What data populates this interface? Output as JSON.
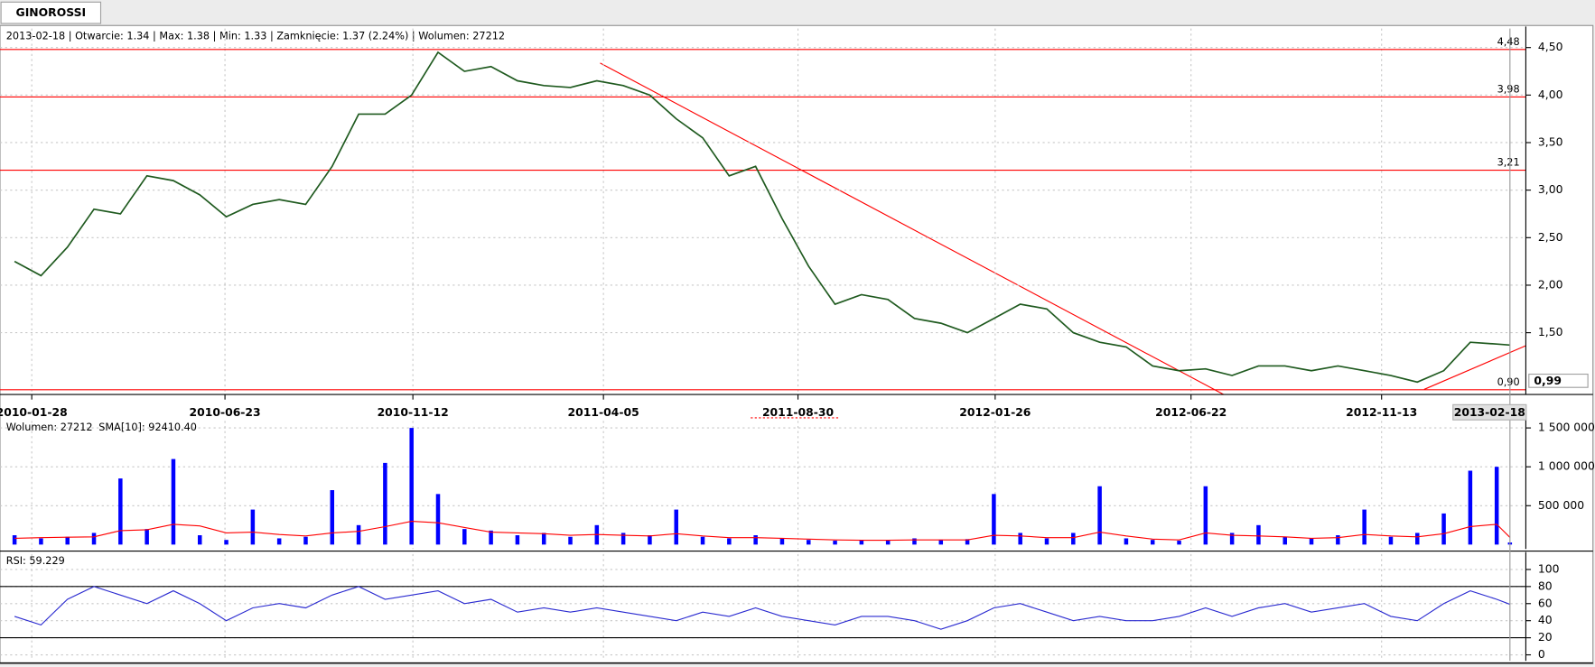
{
  "tab": "GINOROSSI",
  "chart_data": [
    {
      "type": "line",
      "info": "2013-02-18 | Otwarcie: 1.34 | Max: 1.38 | Min: 1.33 | Zamknięcie: 1.37 (2.24%) | Wolumen: 27212",
      "x": [
        "2010-01-15",
        "2010-02-04",
        "2010-02-24",
        "2010-03-16",
        "2010-04-05",
        "2010-04-25",
        "2010-05-15",
        "2010-06-04",
        "2010-06-24",
        "2010-07-14",
        "2010-08-03",
        "2010-08-23",
        "2010-09-12",
        "2010-10-02",
        "2010-10-22",
        "2010-11-11",
        "2010-12-01",
        "2010-12-21",
        "2011-01-10",
        "2011-01-30",
        "2011-02-19",
        "2011-03-11",
        "2011-03-31",
        "2011-04-20",
        "2011-05-10",
        "2011-05-30",
        "2011-06-19",
        "2011-07-09",
        "2011-07-29",
        "2011-08-18",
        "2011-09-07",
        "2011-09-27",
        "2011-10-17",
        "2011-11-06",
        "2011-11-26",
        "2011-12-16",
        "2012-01-05",
        "2012-01-25",
        "2012-02-14",
        "2012-03-05",
        "2012-03-25",
        "2012-04-14",
        "2012-05-04",
        "2012-05-24",
        "2012-06-13",
        "2012-07-03",
        "2012-07-23",
        "2012-08-12",
        "2012-09-01",
        "2012-09-21",
        "2012-10-11",
        "2012-10-31",
        "2012-11-20",
        "2012-12-10",
        "2012-12-30",
        "2013-01-19",
        "2013-02-08",
        "2013-02-18"
      ],
      "xlim": [
        "2010-01-04",
        "2013-03-02"
      ],
      "xticks": [
        "2010-01-28",
        "2010-06-23",
        "2010-11-12",
        "2011-04-05",
        "2011-08-30",
        "2012-01-26",
        "2012-06-22",
        "2012-11-13"
      ],
      "ylim": [
        0.85,
        4.7
      ],
      "yticks": [
        {
          "value": 4.5,
          "label": "4,50"
        },
        {
          "value": 4.0,
          "label": "4,00"
        },
        {
          "value": 3.5,
          "label": "3,50"
        },
        {
          "value": 3.0,
          "label": "3,00"
        },
        {
          "value": 2.5,
          "label": "2,50"
        },
        {
          "value": 2.0,
          "label": "2,00"
        },
        {
          "value": 1.5,
          "label": "1,50"
        }
      ],
      "grid": true,
      "levels": [
        {
          "value": 4.48,
          "label": "4,48"
        },
        {
          "value": 3.98,
          "label": "3,98"
        },
        {
          "value": 3.21,
          "label": "3,21"
        },
        {
          "value": 0.9,
          "label": "0,90"
        }
      ],
      "level_color": "#ff0000",
      "cursor_date": "2013-02-18",
      "cursor_price_label": "0,99",
      "series": [
        {
          "color": "#1f5a1f",
          "values": [
            2.25,
            2.1,
            2.4,
            2.8,
            2.75,
            3.15,
            3.1,
            2.95,
            2.72,
            2.85,
            2.9,
            2.85,
            3.25,
            3.8,
            3.8,
            4.0,
            4.45,
            4.25,
            4.3,
            4.15,
            4.1,
            4.08,
            4.15,
            4.1,
            4.0,
            3.75,
            3.55,
            3.15,
            3.25,
            2.7,
            2.2,
            1.8,
            1.9,
            1.85,
            1.65,
            1.6,
            1.5,
            1.65,
            1.8,
            1.75,
            1.5,
            1.4,
            1.35,
            1.15,
            1.1,
            1.12,
            1.05,
            1.15,
            1.15,
            1.1,
            1.15,
            1.1,
            1.05,
            0.98,
            1.1,
            1.4,
            1.38,
            1.37
          ]
        }
      ]
    },
    {
      "type": "bar",
      "ylim": [
        -57000,
        1590000
      ],
      "yticks": [
        {
          "value": 1500000,
          "label": "1 500 000"
        },
        {
          "value": 1000000,
          "label": "1 000 000"
        },
        {
          "value": 500000,
          "label": "500 000"
        }
      ],
      "series": [
        {
          "name": "Wolumen: 27212",
          "color": "#0000ff",
          "values": [
            120000,
            80000,
            100000,
            150000,
            850000,
            200000,
            1100000,
            120000,
            60000,
            450000,
            80000,
            100000,
            700000,
            250000,
            1050000,
            1500000,
            650000,
            200000,
            180000,
            120000,
            150000,
            100000,
            250000,
            150000,
            120000,
            450000,
            100000,
            80000,
            120000,
            80000,
            60000,
            50000,
            60000,
            50000,
            80000,
            60000,
            70000,
            650000,
            150000,
            80000,
            150000,
            750000,
            80000,
            60000,
            50000,
            750000,
            150000,
            250000,
            100000,
            80000,
            120000,
            450000,
            100000,
            150000,
            400000,
            950000,
            1000000,
            27212
          ]
        },
        {
          "name": "SMA[10]: 92410.40",
          "type": "line",
          "color": "#ff0000",
          "values": [
            80000,
            90000,
            95000,
            100000,
            180000,
            190000,
            260000,
            240000,
            150000,
            160000,
            130000,
            110000,
            150000,
            170000,
            230000,
            300000,
            280000,
            220000,
            160000,
            150000,
            140000,
            120000,
            130000,
            120000,
            110000,
            140000,
            110000,
            90000,
            90000,
            80000,
            70000,
            60000,
            55000,
            55000,
            60000,
            60000,
            60000,
            120000,
            110000,
            90000,
            90000,
            160000,
            110000,
            70000,
            60000,
            150000,
            120000,
            110000,
            100000,
            80000,
            90000,
            130000,
            110000,
            100000,
            140000,
            230000,
            260000,
            92410.4
          ]
        }
      ]
    },
    {
      "type": "line",
      "ylim": [
        -7,
        118
      ],
      "yticks": [
        100,
        80,
        60,
        40,
        20,
        0
      ],
      "levels": [
        80,
        20
      ],
      "level_color": "#000000",
      "series": [
        {
          "name": "RSI: 59.229",
          "color": "#2a2ad0",
          "values": [
            45,
            35,
            65,
            80,
            70,
            60,
            75,
            60,
            40,
            55,
            60,
            55,
            70,
            80,
            65,
            70,
            75,
            60,
            65,
            50,
            55,
            50,
            55,
            50,
            45,
            40,
            50,
            45,
            55,
            45,
            40,
            35,
            45,
            45,
            40,
            30,
            40,
            55,
            60,
            50,
            40,
            45,
            40,
            40,
            45,
            55,
            45,
            55,
            60,
            50,
            55,
            60,
            45,
            40,
            60,
            75,
            65,
            59.229
          ]
        }
      ]
    }
  ]
}
